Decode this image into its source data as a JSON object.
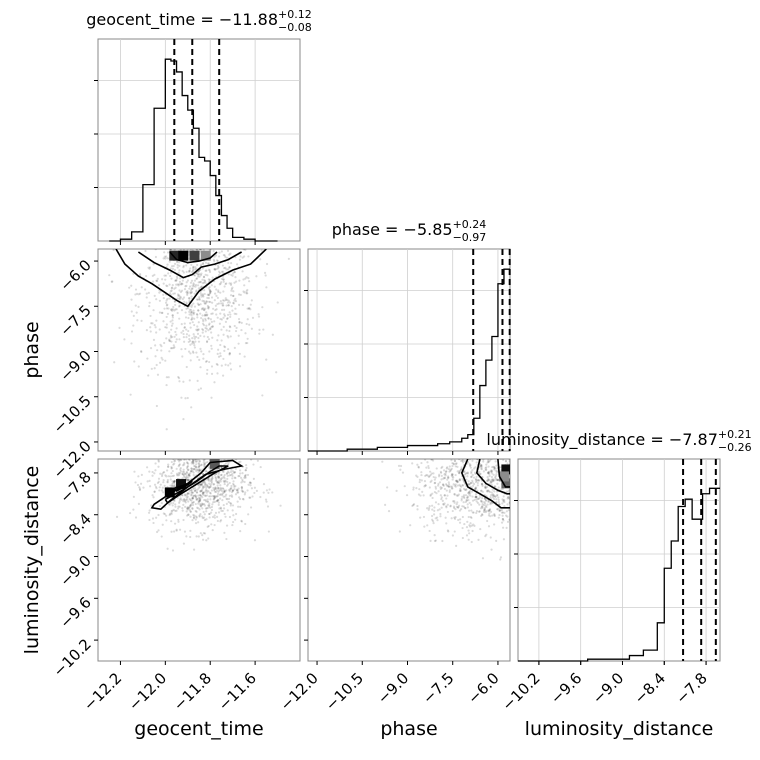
{
  "chart_data": {
    "type": "corner",
    "parameters": [
      {
        "name": "geocent_time",
        "range": [
          -12.3,
          -11.4
        ],
        "ticks": [
          -12.2,
          -12.0,
          -11.8,
          -11.6
        ],
        "tick_labels": [
          "−12.2",
          "−12.0",
          "−11.8",
          "−11.6"
        ],
        "median": -11.88,
        "quantiles": [
          -11.96,
          -11.88,
          -11.76
        ],
        "title": {
          "main": "geocent_time = −11.88",
          "upper": "+0.12",
          "lower": "−0.08"
        },
        "hist_edges": [
          -12.25,
          -12.2,
          -12.15,
          -12.1,
          -12.05,
          -12.0,
          -11.975,
          -11.95,
          -11.925,
          -11.9,
          -11.875,
          -11.85,
          -11.825,
          -11.8,
          -11.775,
          -11.75,
          -11.725,
          -11.7,
          -11.65,
          -11.6,
          -11.55,
          -11.5
        ],
        "hist_counts": [
          0.0,
          0.01,
          0.05,
          0.31,
          0.73,
          1.0,
          0.99,
          0.93,
          0.8,
          0.72,
          0.62,
          0.46,
          0.44,
          0.36,
          0.25,
          0.14,
          0.07,
          0.02,
          0.01,
          0.0,
          0.0
        ]
      },
      {
        "name": "phase",
        "range": [
          -12.3,
          -5.6
        ],
        "ticks": [
          -12.0,
          -10.5,
          -9.0,
          -7.5,
          -6.0
        ],
        "tick_labels": [
          "−12.0",
          "−10.5",
          "−9.0",
          "−7.5",
          "−6.0"
        ],
        "median": -5.85,
        "quantiles": [
          -6.82,
          -5.85,
          -5.61
        ],
        "title": {
          "main": "phase = −5.85",
          "upper": "+0.24",
          "lower": "−0.97"
        },
        "hist_edges": [
          -12.3,
          -11.0,
          -10.0,
          -9.0,
          -8.0,
          -7.6,
          -7.2,
          -7.0,
          -6.8,
          -6.6,
          -6.4,
          -6.2,
          -6.0,
          -5.8,
          -5.6
        ],
        "hist_counts": [
          0.0,
          0.01,
          0.02,
          0.03,
          0.04,
          0.05,
          0.07,
          0.09,
          0.18,
          0.36,
          0.5,
          0.63,
          0.92,
          1.0
        ]
      },
      {
        "name": "luminosity_distance",
        "range": [
          -10.5,
          -7.6
        ],
        "ticks": [
          -10.2,
          -9.6,
          -9.0,
          -8.4,
          -7.8
        ],
        "tick_labels": [
          "−10.2",
          "−9.6",
          "−9.0",
          "−8.4",
          "−7.8"
        ],
        "median": -7.87,
        "quantiles": [
          -8.13,
          -7.87,
          -7.66
        ],
        "title": {
          "main": "luminosity_distance = −7.87",
          "upper": "+0.21",
          "lower": "−0.26"
        },
        "hist_edges": [
          -10.5,
          -9.5,
          -8.9,
          -8.7,
          -8.5,
          -8.4,
          -8.3,
          -8.2,
          -8.1,
          -8.0,
          -7.9,
          -7.85,
          -7.75,
          -7.6
        ],
        "hist_counts": [
          0.0,
          0.01,
          0.03,
          0.06,
          0.21,
          0.51,
          0.66,
          0.85,
          0.89,
          0.78,
          0.78,
          0.92,
          0.95
        ]
      }
    ],
    "joint_plots": [
      {
        "x": "geocent_time",
        "y": "phase",
        "contours": [
          [
            [
              -12.22,
              -5.6
            ],
            [
              -12.18,
              -6.1
            ],
            [
              -12.12,
              -6.5
            ],
            [
              -12.06,
              -6.75
            ],
            [
              -12.0,
              -7.05
            ],
            [
              -11.95,
              -7.3
            ],
            [
              -11.9,
              -7.5
            ],
            [
              -11.85,
              -7.0
            ],
            [
              -11.78,
              -6.6
            ],
            [
              -11.7,
              -6.3
            ],
            [
              -11.62,
              -6.1
            ],
            [
              -11.55,
              -5.6
            ]
          ],
          [
            [
              -12.12,
              -5.7
            ],
            [
              -12.05,
              -6.05
            ],
            [
              -11.98,
              -6.3
            ],
            [
              -11.92,
              -6.55
            ],
            [
              -11.88,
              -6.45
            ],
            [
              -11.84,
              -6.2
            ],
            [
              -11.78,
              -6.1
            ],
            [
              -11.72,
              -5.95
            ],
            [
              -11.66,
              -5.7
            ]
          ],
          [
            [
              -11.98,
              -5.7
            ],
            [
              -11.95,
              -5.95
            ],
            [
              -11.9,
              -6.05
            ],
            [
              -11.85,
              -6.0
            ],
            [
              -11.8,
              -5.9
            ],
            [
              -11.77,
              -5.7
            ]
          ]
        ],
        "density": [
          {
            "x": -11.96,
            "y": -5.82,
            "level": 0.85
          },
          {
            "x": -11.92,
            "y": -5.82,
            "level": 1.0
          },
          {
            "x": -11.87,
            "y": -5.82,
            "level": 0.75
          },
          {
            "x": -11.82,
            "y": -5.82,
            "level": 0.45
          }
        ],
        "scatter_center": [
          -11.86,
          -7.0
        ],
        "scatter_spread": [
          0.13,
          1.35
        ]
      },
      {
        "x": "geocent_time",
        "y": "luminosity_distance",
        "contours": [
          [
            [
              -12.05,
              -8.25
            ],
            [
              -11.98,
              -8.1
            ],
            [
              -11.9,
              -7.95
            ],
            [
              -11.84,
              -7.8
            ],
            [
              -11.8,
              -7.65
            ],
            [
              -11.7,
              -7.62
            ],
            [
              -11.66,
              -7.7
            ],
            [
              -11.74,
              -7.75
            ],
            [
              -11.82,
              -7.82
            ],
            [
              -11.9,
              -8.0
            ],
            [
              -11.98,
              -8.2
            ],
            [
              -12.02,
              -8.32
            ],
            [
              -12.06,
              -8.3
            ],
            [
              -12.05,
              -8.25
            ]
          ],
          [
            [
              -12.0,
              -8.18
            ],
            [
              -11.93,
              -8.06
            ],
            [
              -11.86,
              -7.92
            ],
            [
              -11.8,
              -7.78
            ],
            [
              -11.76,
              -7.7
            ],
            [
              -11.72,
              -7.7
            ],
            [
              -11.78,
              -7.8
            ],
            [
              -11.86,
              -7.96
            ],
            [
              -11.94,
              -8.12
            ],
            [
              -11.99,
              -8.23
            ],
            [
              -12.0,
              -8.18
            ]
          ],
          [
            [
              -11.96,
              -8.02
            ],
            [
              -11.92,
              -7.98
            ],
            [
              -11.88,
              -7.92
            ],
            [
              -11.9,
              -7.97
            ],
            [
              -11.95,
              -8.06
            ],
            [
              -11.96,
              -8.02
            ]
          ]
        ],
        "density": [
          {
            "x": -11.98,
            "y": -8.08,
            "level": 1.0
          },
          {
            "x": -11.93,
            "y": -7.96,
            "level": 0.95
          },
          {
            "x": -11.78,
            "y": -7.67,
            "level": 0.65
          }
        ],
        "scatter_center": [
          -11.85,
          -7.95
        ],
        "scatter_spread": [
          0.11,
          0.32
        ]
      },
      {
        "x": "phase",
        "y": "luminosity_distance",
        "contours": [
          [
            [
              -7.0,
              -7.6
            ],
            [
              -7.2,
              -7.8
            ],
            [
              -7.0,
              -8.0
            ],
            [
              -6.6,
              -8.1
            ],
            [
              -6.2,
              -8.2
            ],
            [
              -5.9,
              -8.3
            ],
            [
              -5.6,
              -8.3
            ]
          ],
          [
            [
              -6.6,
              -7.6
            ],
            [
              -6.7,
              -7.8
            ],
            [
              -6.4,
              -7.95
            ],
            [
              -6.0,
              -8.05
            ],
            [
              -5.7,
              -8.1
            ],
            [
              -5.6,
              -8.1
            ]
          ],
          [
            [
              -6.0,
              -7.6
            ],
            [
              -5.95,
              -7.85
            ],
            [
              -5.75,
              -8.0
            ],
            [
              -5.6,
              -8.0
            ]
          ]
        ],
        "density": [
          {
            "x": -5.72,
            "y": -7.75,
            "level": 0.95
          },
          {
            "x": -5.72,
            "y": -7.95,
            "level": 0.6
          },
          {
            "x": -5.8,
            "y": -7.85,
            "level": 0.45
          }
        ],
        "scatter_center": [
          -6.6,
          -7.95
        ],
        "scatter_spread": [
          1.1,
          0.35
        ]
      }
    ]
  }
}
